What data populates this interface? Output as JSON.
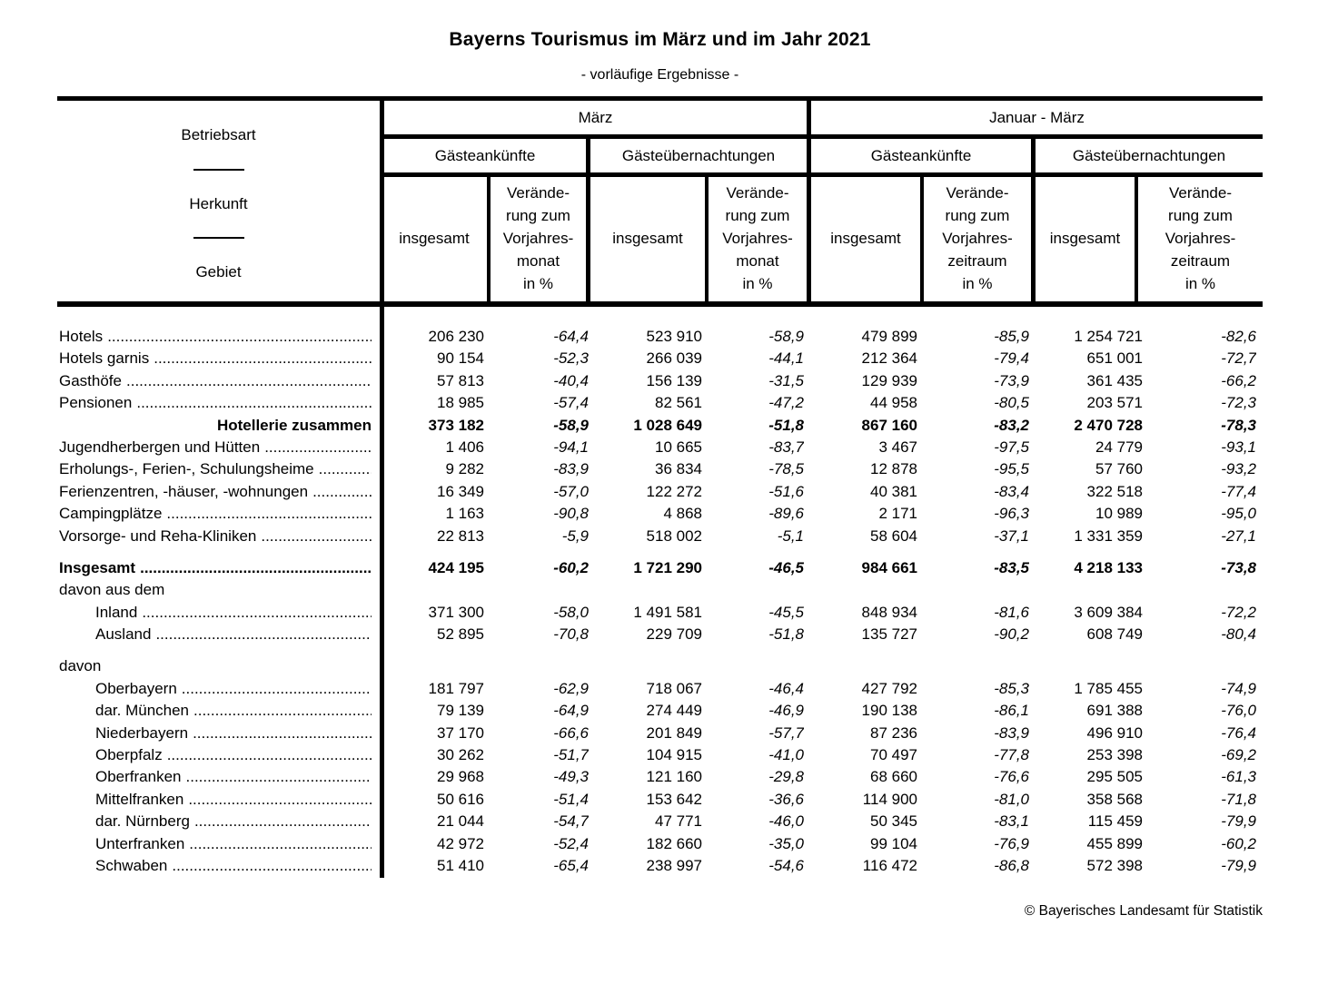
{
  "title": "Bayerns Tourismus im März und im Jahr 2021",
  "subtitle": "- vorläufige Ergebnisse -",
  "footer": {
    "copyright": "© Bayerisches Landesamt für Statistik"
  },
  "header": {
    "stub": {
      "labels": [
        "Betriebsart",
        "Herkunft",
        "Gebiet"
      ]
    },
    "period_groups": [
      {
        "label": "März"
      },
      {
        "label": "Januar - März"
      }
    ],
    "measure_groups": [
      {
        "label": "Gästeankünfte"
      },
      {
        "label": "Gästeübernachtungen"
      },
      {
        "label": "Gästeankünfte"
      },
      {
        "label": "Gästeübernachtungen"
      }
    ],
    "columns": [
      {
        "label": "insgesamt"
      },
      {
        "label": "Verände-\nrung zum\nVorjahres-\nmonat\nin %"
      },
      {
        "label": "insgesamt"
      },
      {
        "label": "Verände-\nrung zum\nVorjahres-\nmonat\nin %"
      },
      {
        "label": "insgesamt"
      },
      {
        "label": "Verände-\nrung zum\nVorjahres-\nzeitraum\nin %"
      },
      {
        "label": "insgesamt"
      },
      {
        "label": "Verände-\nrung zum\nVorjahres-\nzeitraum\nin %"
      }
    ]
  },
  "table": {
    "sections": [
      {
        "rows": [
          {
            "label": "Hotels",
            "type": "item",
            "values": [
              "206 230",
              "-64,4",
              "523 910",
              "-58,9",
              "479 899",
              "-85,9",
              "1 254 721",
              "-82,6"
            ]
          },
          {
            "label": "Hotels garnis",
            "type": "item",
            "values": [
              "90 154",
              "-52,3",
              "266 039",
              "-44,1",
              "212 364",
              "-79,4",
              "651 001",
              "-72,7"
            ]
          },
          {
            "label": "Gasthöfe",
            "type": "item",
            "values": [
              "57 813",
              "-40,4",
              "156 139",
              "-31,5",
              "129 939",
              "-73,9",
              "361 435",
              "-66,2"
            ]
          },
          {
            "label": "Pensionen",
            "type": "item",
            "values": [
              "18 985",
              "-57,4",
              "82 561",
              "-47,2",
              "44 958",
              "-80,5",
              "203 571",
              "-72,3"
            ]
          },
          {
            "label": "Hotellerie zusammen",
            "type": "sum",
            "values": [
              "373 182",
              "-58,9",
              "1 028 649",
              "-51,8",
              "867 160",
              "-83,2",
              "2 470 728",
              "-78,3"
            ]
          },
          {
            "label": "Jugendherbergen und Hütten",
            "type": "item",
            "values": [
              "1 406",
              "-94,1",
              "10 665",
              "-83,7",
              "3 467",
              "-97,5",
              "24 779",
              "-93,1"
            ]
          },
          {
            "label": "Erholungs-, Ferien-, Schulungsheime",
            "type": "item",
            "values": [
              "9 282",
              "-83,9",
              "36 834",
              "-78,5",
              "12 878",
              "-95,5",
              "57 760",
              "-93,2"
            ]
          },
          {
            "label": "Ferienzentren, -häuser, -wohnungen",
            "type": "item",
            "values": [
              "16 349",
              "-57,0",
              "122 272",
              "-51,6",
              "40 381",
              "-83,4",
              "322 518",
              "-77,4"
            ]
          },
          {
            "label": "Campingplätze",
            "type": "item",
            "values": [
              "1 163",
              "-90,8",
              "4 868",
              "-89,6",
              "2 171",
              "-96,3",
              "10 989",
              "-95,0"
            ]
          },
          {
            "label": "Vorsorge- und Reha-Kliniken",
            "type": "item",
            "values": [
              "22 813",
              "-5,9",
              "518 002",
              "-5,1",
              "58 604",
              "-37,1",
              "1 331 359",
              "-27,1"
            ]
          }
        ]
      },
      {
        "rows": [
          {
            "label": "Insgesamt",
            "type": "total",
            "values": [
              "424 195",
              "-60,2",
              "1 721 290",
              "-46,5",
              "984 661",
              "-83,5",
              "4 218 133",
              "-73,8"
            ]
          },
          {
            "label": "davon aus dem",
            "type": "group",
            "values": []
          },
          {
            "label": "Inland",
            "type": "sub",
            "values": [
              "371 300",
              "-58,0",
              "1 491 581",
              "-45,5",
              "848 934",
              "-81,6",
              "3 609 384",
              "-72,2"
            ]
          },
          {
            "label": "Ausland",
            "type": "sub",
            "values": [
              "52 895",
              "-70,8",
              "229 709",
              "-51,8",
              "135 727",
              "-90,2",
              "608 749",
              "-80,4"
            ]
          }
        ]
      },
      {
        "rows": [
          {
            "label": "davon",
            "type": "group",
            "values": []
          },
          {
            "label": "Oberbayern",
            "type": "sub",
            "values": [
              "181 797",
              "-62,9",
              "718 067",
              "-46,4",
              "427 792",
              "-85,3",
              "1 785 455",
              "-74,9"
            ]
          },
          {
            "label": "dar. München",
            "type": "sub",
            "values": [
              "79 139",
              "-64,9",
              "274 449",
              "-46,9",
              "190 138",
              "-86,1",
              "691 388",
              "-76,0"
            ]
          },
          {
            "label": "Niederbayern",
            "type": "sub",
            "values": [
              "37 170",
              "-66,6",
              "201 849",
              "-57,7",
              "87 236",
              "-83,9",
              "496 910",
              "-76,4"
            ]
          },
          {
            "label": "Oberpfalz",
            "type": "sub",
            "values": [
              "30 262",
              "-51,7",
              "104 915",
              "-41,0",
              "70 497",
              "-77,8",
              "253 398",
              "-69,2"
            ]
          },
          {
            "label": "Oberfranken",
            "type": "sub",
            "values": [
              "29 968",
              "-49,3",
              "121 160",
              "-29,8",
              "68 660",
              "-76,6",
              "295 505",
              "-61,3"
            ]
          },
          {
            "label": "Mittelfranken",
            "type": "sub",
            "values": [
              "50 616",
              "-51,4",
              "153 642",
              "-36,6",
              "114 900",
              "-81,0",
              "358 568",
              "-71,8"
            ]
          },
          {
            "label": "dar. Nürnberg",
            "type": "sub",
            "values": [
              "21 044",
              "-54,7",
              "47 771",
              "-46,0",
              "50 345",
              "-83,1",
              "115 459",
              "-79,9"
            ]
          },
          {
            "label": "Unterfranken",
            "type": "sub",
            "values": [
              "42 972",
              "-52,4",
              "182 660",
              "-35,0",
              "99 104",
              "-76,9",
              "455 899",
              "-60,2"
            ]
          },
          {
            "label": "Schwaben",
            "type": "sub",
            "values": [
              "51 410",
              "-65,4",
              "238 997",
              "-54,6",
              "116 472",
              "-86,8",
              "572 398",
              "-79,9"
            ]
          }
        ]
      }
    ]
  }
}
